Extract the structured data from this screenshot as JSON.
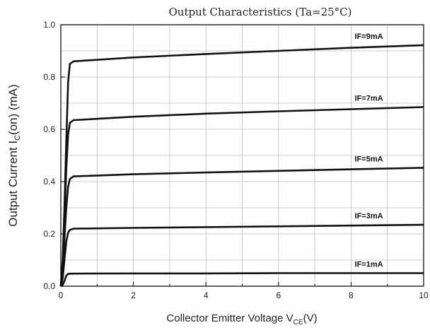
{
  "chart_data": {
    "type": "line",
    "title": "Output Characteristics (Ta=25°C)",
    "xlabel": {
      "main": "Collector Emitter Voltage V",
      "sub": "CE",
      "unit": "(V)"
    },
    "ylabel": {
      "main": "Output Current I",
      "sub": "C",
      "tail": "(on) (mA)"
    },
    "xlim": [
      0,
      10
    ],
    "ylim": [
      0,
      1.0
    ],
    "x_ticks": [
      0,
      2,
      4,
      6,
      8,
      10
    ],
    "x_tick_labels": [
      "0",
      "2",
      "4",
      "6",
      "8",
      "10"
    ],
    "y_ticks": [
      0.0,
      0.2,
      0.4,
      0.6,
      0.8,
      1.0
    ],
    "y_tick_labels": [
      "0.0",
      "0.2",
      "0.4",
      "0.6",
      "0.8",
      "1.0"
    ],
    "grid": true,
    "series": [
      {
        "name": "IF=1mA",
        "x": [
          0,
          0.05,
          0.1,
          0.15,
          0.2,
          0.3,
          2,
          4,
          6,
          8,
          10
        ],
        "y": [
          0,
          0.005,
          0.02,
          0.04,
          0.047,
          0.048,
          0.049,
          0.049,
          0.05,
          0.05,
          0.05
        ]
      },
      {
        "name": "IF=3mA",
        "x": [
          0,
          0.05,
          0.1,
          0.15,
          0.2,
          0.25,
          0.35,
          2,
          4,
          6,
          8,
          10
        ],
        "y": [
          0,
          0.03,
          0.1,
          0.17,
          0.205,
          0.215,
          0.22,
          0.223,
          0.226,
          0.229,
          0.232,
          0.235
        ]
      },
      {
        "name": "IF=5mA",
        "x": [
          0,
          0.05,
          0.1,
          0.15,
          0.2,
          0.25,
          0.35,
          2,
          4,
          6,
          8,
          10
        ],
        "y": [
          0,
          0.06,
          0.18,
          0.3,
          0.38,
          0.41,
          0.42,
          0.428,
          0.435,
          0.441,
          0.447,
          0.453
        ]
      },
      {
        "name": "IF=7mA",
        "x": [
          0,
          0.05,
          0.1,
          0.15,
          0.2,
          0.25,
          0.35,
          2,
          4,
          6,
          8,
          10
        ],
        "y": [
          0,
          0.08,
          0.25,
          0.45,
          0.58,
          0.625,
          0.635,
          0.648,
          0.66,
          0.669,
          0.677,
          0.685
        ]
      },
      {
        "name": "IF=9mA",
        "x": [
          0,
          0.05,
          0.1,
          0.15,
          0.2,
          0.25,
          0.35,
          2,
          4,
          6,
          8,
          10
        ],
        "y": [
          0,
          0.1,
          0.3,
          0.55,
          0.78,
          0.85,
          0.86,
          0.875,
          0.888,
          0.9,
          0.912,
          0.922
        ]
      }
    ]
  }
}
